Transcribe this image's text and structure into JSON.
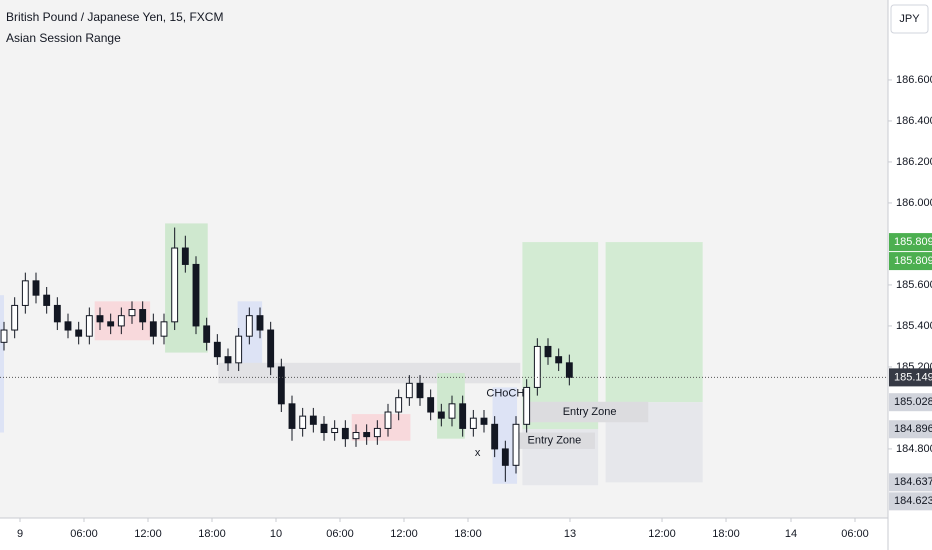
{
  "chart_data": {
    "type": "candlestick",
    "title": "British Pound / Japanese Yen, 15, FXCM",
    "subtitle": "Asian Session Range",
    "currency": "JPY",
    "x": [
      -1.5,
      -0.5,
      0.5,
      1.5,
      2.5,
      3.5,
      4.5,
      5.5,
      6.5,
      7.5,
      8.5,
      9.5,
      10.5,
      11.5,
      12.5,
      13.5,
      14.5,
      15.5,
      16.5,
      17.5,
      18.5,
      19.5,
      20.5,
      21.5,
      22.5,
      23.5,
      24.5,
      25.5,
      26.5,
      27.5,
      28.5,
      29.5,
      30.5,
      31.5,
      32.5,
      33.5,
      34.5,
      35.5,
      36.5,
      37.5,
      38.5,
      39.5,
      40.5,
      41.5,
      42.5,
      43.5,
      44.5,
      45.5,
      46.5,
      47.5,
      48.5,
      49.5,
      50.5,
      51.5
    ],
    "open": [
      185.32,
      185.38,
      185.5,
      185.62,
      185.55,
      185.5,
      185.42,
      185.38,
      185.35,
      185.45,
      185.42,
      185.4,
      185.45,
      185.48,
      185.42,
      185.35,
      185.42,
      185.78,
      185.7,
      185.4,
      185.32,
      185.25,
      185.22,
      185.35,
      185.45,
      185.38,
      185.2,
      185.02,
      184.9,
      184.96,
      184.92,
      184.88,
      184.9,
      184.85,
      184.88,
      184.86,
      184.9,
      184.98,
      185.05,
      185.12,
      185.05,
      184.98,
      184.95,
      185.02,
      184.9,
      184.95,
      184.92,
      184.8,
      184.72,
      184.92,
      185.1,
      185.3,
      185.25,
      185.22
    ],
    "high": [
      185.42,
      185.54,
      185.66,
      185.66,
      185.59,
      185.54,
      185.46,
      185.42,
      185.49,
      185.49,
      185.46,
      185.49,
      185.52,
      185.52,
      185.46,
      185.46,
      185.88,
      185.84,
      185.74,
      185.44,
      185.36,
      185.29,
      185.39,
      185.49,
      185.49,
      185.42,
      185.24,
      185.06,
      185.0,
      185.0,
      184.96,
      184.94,
      184.94,
      184.92,
      184.92,
      184.94,
      185.02,
      185.09,
      185.16,
      185.16,
      185.09,
      185.02,
      185.06,
      185.06,
      184.99,
      184.99,
      184.96,
      184.84,
      184.96,
      185.14,
      185.34,
      185.34,
      185.29,
      185.26
    ],
    "low": [
      185.28,
      185.34,
      185.46,
      185.51,
      185.46,
      185.38,
      185.34,
      185.31,
      185.31,
      185.38,
      185.36,
      185.36,
      185.41,
      185.38,
      185.31,
      185.31,
      185.38,
      185.66,
      185.36,
      185.28,
      185.21,
      185.18,
      185.18,
      185.31,
      185.34,
      185.16,
      184.98,
      184.84,
      184.86,
      184.88,
      184.84,
      184.84,
      184.81,
      184.81,
      184.82,
      184.82,
      184.86,
      184.94,
      185.01,
      185.01,
      184.94,
      184.91,
      184.91,
      184.86,
      184.86,
      184.88,
      184.76,
      184.64,
      184.68,
      184.88,
      185.06,
      185.21,
      185.18,
      185.11
    ],
    "close": [
      185.38,
      185.5,
      185.62,
      185.55,
      185.5,
      185.42,
      185.38,
      185.35,
      185.45,
      185.42,
      185.4,
      185.45,
      185.48,
      185.42,
      185.35,
      185.42,
      185.78,
      185.7,
      185.4,
      185.32,
      185.25,
      185.22,
      185.35,
      185.45,
      185.38,
      185.2,
      185.02,
      184.9,
      184.96,
      184.92,
      184.88,
      184.9,
      184.85,
      184.88,
      184.86,
      184.9,
      184.98,
      185.05,
      185.12,
      185.05,
      184.98,
      184.95,
      185.02,
      184.9,
      184.95,
      184.92,
      184.8,
      184.72,
      184.92,
      185.1,
      185.3,
      185.25,
      185.22,
      185.149
    ],
    "color": "#131722",
    "xlim": [
      -1.875,
      81.375
    ],
    "ylim": [
      184.463,
      186.99
    ],
    "xticks": [
      {
        "value": 0,
        "label": "9"
      },
      {
        "value": 6,
        "label": "06:00"
      },
      {
        "value": 12,
        "label": "12:00"
      },
      {
        "value": 18,
        "label": "18:00"
      },
      {
        "value": 24,
        "label": "10"
      },
      {
        "value": 30,
        "label": "06:00"
      },
      {
        "value": 36,
        "label": "12:00"
      },
      {
        "value": 42,
        "label": "18:00"
      },
      {
        "value": 51.56,
        "label": "13"
      },
      {
        "value": 60.19,
        "label": "12:00"
      },
      {
        "value": 66.19,
        "label": "18:00"
      },
      {
        "value": 72.28,
        "label": "14"
      },
      {
        "value": 78.28,
        "label": "06:00"
      }
    ],
    "yticks": [
      {
        "value": 184.8,
        "label": "184.800"
      },
      {
        "value": 185.2,
        "label": "185.200"
      },
      {
        "value": 185.4,
        "label": "185.400"
      },
      {
        "value": 185.6,
        "label": "185.600"
      },
      {
        "value": 186,
        "label": "186.000"
      },
      {
        "value": 186.2,
        "label": "186.200"
      },
      {
        "value": 186.4,
        "label": "186.400"
      },
      {
        "value": 186.6,
        "label": "186.600"
      }
    ],
    "boxes": [
      {
        "x": [
          -1.875,
          -1.5
        ],
        "y": [
          184.88,
          185.55
        ],
        "color": "#dde3f5"
      },
      {
        "x": [
          7.0,
          12.2
        ],
        "y": [
          185.33,
          185.52
        ],
        "color": "#f8d9dc"
      },
      {
        "x": [
          13.6,
          17.6
        ],
        "y": [
          185.27,
          185.9
        ],
        "color": "#cfe8cf"
      },
      {
        "x": [
          20.4,
          22.7
        ],
        "y": [
          185.14,
          185.52
        ],
        "color": "#dde3f5"
      },
      {
        "x": [
          18.6,
          46.9
        ],
        "y": [
          185.12,
          185.22
        ],
        "color": "#e2e2e5"
      },
      {
        "x": [
          31.1,
          36.6
        ],
        "y": [
          184.84,
          184.97
        ],
        "color": "#f8d9dc"
      },
      {
        "x": [
          39.1,
          41.7
        ],
        "y": [
          184.85,
          185.17
        ],
        "color": "#cfe8cf"
      },
      {
        "x": [
          44.3,
          46.6
        ],
        "y": [
          184.63,
          185.1
        ],
        "color": "#dde3f5"
      },
      {
        "x": [
          47.1,
          54.2
        ],
        "y": [
          184.896,
          185.809
        ],
        "color": "#d3ebd3"
      },
      {
        "x": [
          47.1,
          54.2
        ],
        "y": [
          184.623,
          184.896
        ],
        "color": "#e6e7eb"
      },
      {
        "x": [
          54.9,
          64.0
        ],
        "y": [
          185.028,
          185.809
        ],
        "color": "#d3ebd3"
      },
      {
        "x": [
          54.9,
          64.0
        ],
        "y": [
          184.637,
          185.028
        ],
        "color": "#e6e7eb"
      },
      {
        "x": [
          47.8,
          58.9
        ],
        "y": [
          184.93,
          185.03
        ],
        "color": "#dcdcdf"
      },
      {
        "x": [
          46.4,
          53.9
        ],
        "y": [
          184.8,
          184.88
        ],
        "color": "#dcdcdf"
      }
    ],
    "annotations": [
      {
        "text": "Entry Zone",
        "x": 53.4,
        "y": 184.98
      },
      {
        "text": "Entry Zone",
        "x": 50.1,
        "y": 184.84
      },
      {
        "text": "CHoCH",
        "x": 45.5,
        "y": 185.07
      },
      {
        "text": "x",
        "x": 42.9,
        "y": 184.78
      }
    ],
    "current_price": 185.149,
    "price_labels": [
      {
        "value": 185.809,
        "color": "#4caf50"
      },
      {
        "value": 185.809,
        "color": "#4caf50"
      },
      {
        "value": 185.149,
        "color": "#363a45"
      },
      {
        "value": 185.028,
        "color": "#d1d4dc"
      },
      {
        "value": 184.896,
        "color": "#d1d4dc"
      },
      {
        "value": 184.637,
        "color": "#d1d4dc"
      },
      {
        "value": 184.623,
        "color": "#d1d4dc"
      }
    ]
  }
}
